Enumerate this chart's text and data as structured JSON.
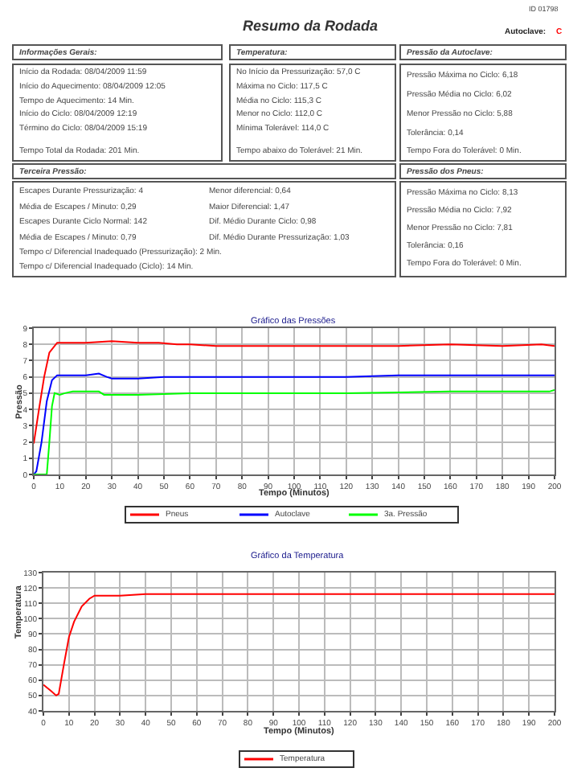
{
  "chart_data": [
    {
      "type": "other",
      "title": "Resumo da Rodada",
      "annotations": [
        "ID 01798",
        "Autoclave:",
        "C",
        "Informações Gerais:",
        "Início da Rodada: 08/04/2009 11:59",
        "Início do Aquecimento: 08/04/2009 12:05",
        "Tempo de Aquecimento: 14 Min.",
        "Início do Ciclo: 08/04/2009 12:19",
        "Término do Ciclo: 08/04/2009 15:19",
        "Tempo Total da Rodada: 201 Min.",
        "Temperatura:",
        "No Início da Pressurização: 57,0 C",
        "Máxima no Ciclo: 117,5 C",
        "Média no Ciclo: 115,3 C",
        "Menor no Ciclo: 112,0 C",
        "Mínima Tolerável: 114,0 C",
        "Tempo abaixo do Tolerável: 21 Min.",
        "Pressão da Autoclave:",
        "Pressão Máxima no Ciclo: 6,18",
        "Pressão Média no Ciclo: 6,02",
        "Menor Pressão no Ciclo: 5,88",
        "Tolerância: 0,14",
        "Tempo Fora do Tolerável: 0 Min.",
        "Terceira Pressão:",
        "Escapes Durante Pressurização: 4",
        "Média de Escapes / Minuto: 0,29",
        "Escapes Durante Ciclo Normal: 142",
        "Média de Escapes / Minuto: 0,79",
        "Menor diferencial: 0,64",
        "Maior Diferencial: 1,47",
        "Dif. Médio Durante Ciclo: 0,98",
        "Dif. Médio Durante Pressurização: 1,03",
        "Tempo c/ Diferencial Inadequado (Pressurização): 2 Min.",
        "Tempo c/ Diferencial Inadequado (Ciclo): 14 Min.",
        "Pressão dos Pneus:",
        "Pressão Máxima no Ciclo: 8,13",
        "Pressão Média no Ciclo: 7,92",
        "Menor Pressão no Ciclo: 7,81",
        "Tolerância: 0,16",
        "Tempo Fora do Tolerável: 0 Min."
      ]
    },
    {
      "type": "line",
      "title": "Gráfico das Pressões",
      "xlabel": "Tempo (Minutos)",
      "ylabel": "Pressão",
      "xlim": [
        0,
        200
      ],
      "xticks": [
        0,
        10,
        20,
        30,
        40,
        50,
        60,
        70,
        80,
        90,
        100,
        110,
        120,
        130,
        140,
        150,
        160,
        170,
        180,
        190,
        200
      ],
      "ylim": [
        0,
        9
      ],
      "yticks": [
        0,
        1,
        2,
        3,
        4,
        5,
        6,
        7,
        8,
        9
      ],
      "grid": true,
      "legend": "bottom",
      "marker": "none",
      "series": [
        {
          "name": "Pneus",
          "color": "#ff0000",
          "x": [
            0,
            2,
            4,
            6,
            9,
            10,
            20,
            30,
            40,
            48,
            55,
            60,
            70,
            80,
            100,
            120,
            140,
            160,
            180,
            195,
            200
          ],
          "values": [
            1.9,
            4,
            6,
            7.5,
            8.1,
            8.1,
            8.1,
            8.2,
            8.1,
            8.1,
            8.0,
            8.0,
            7.9,
            7.9,
            7.9,
            7.9,
            7.9,
            8.0,
            7.9,
            8.0,
            7.9
          ]
        },
        {
          "name": "Autoclave",
          "color": "#0000ff",
          "x": [
            0,
            1,
            3,
            5,
            7,
            9,
            15,
            20,
            25,
            28,
            30,
            40,
            50,
            60,
            100,
            120,
            140,
            200
          ],
          "values": [
            0,
            0.2,
            2,
            4.5,
            5.8,
            6.1,
            6.1,
            6.1,
            6.2,
            6.0,
            5.9,
            5.9,
            6.0,
            6.0,
            6.0,
            6.0,
            6.1,
            6.1
          ]
        },
        {
          "name": "3a. Pressão",
          "color": "#00ff00",
          "x": [
            0,
            5,
            6,
            7,
            8,
            10,
            12,
            15,
            25,
            27,
            40,
            60,
            80,
            120,
            160,
            180,
            198,
            200
          ],
          "values": [
            0,
            0,
            2,
            4.2,
            5.0,
            4.9,
            5.0,
            5.1,
            5.1,
            4.9,
            4.9,
            5.0,
            5.0,
            5.0,
            5.1,
            5.1,
            5.1,
            5.2
          ]
        }
      ]
    },
    {
      "type": "line",
      "title": "Gráfico da Temperatura",
      "xlabel": "Tempo (Minutos)",
      "ylabel": "Temperatura",
      "xlim": [
        0,
        200
      ],
      "xticks": [
        0,
        10,
        20,
        30,
        40,
        50,
        60,
        70,
        80,
        90,
        100,
        110,
        120,
        130,
        140,
        150,
        160,
        170,
        180,
        190,
        200
      ],
      "ylim": [
        40,
        130
      ],
      "yticks": [
        40,
        50,
        60,
        70,
        80,
        90,
        100,
        110,
        120,
        130
      ],
      "grid": true,
      "legend": "bottom",
      "marker": "none",
      "series": [
        {
          "name": "Temperatura",
          "color": "#ff0000",
          "x": [
            0,
            3,
            5,
            6,
            8,
            10,
            12,
            15,
            18,
            20,
            25,
            30,
            40,
            60,
            80,
            100,
            120,
            140,
            160,
            180,
            200
          ],
          "values": [
            57,
            53,
            50,
            51,
            70,
            88,
            98,
            108,
            113,
            115,
            115,
            115,
            116,
            116,
            116,
            116,
            116,
            116,
            116,
            116,
            116
          ]
        }
      ]
    }
  ]
}
